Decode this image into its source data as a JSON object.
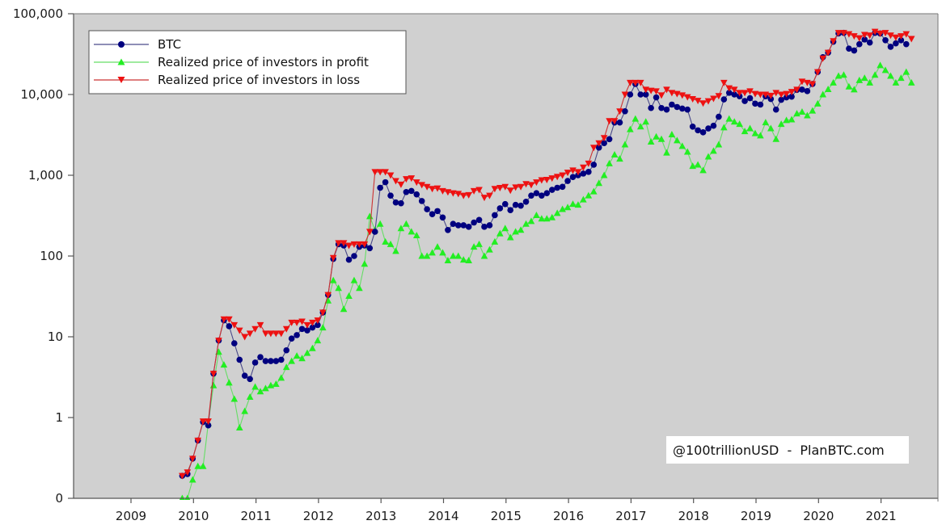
{
  "chart_data": {
    "type": "line",
    "title": "",
    "xlabel": "",
    "ylabel": "",
    "yscale": "log",
    "ylim": [
      0.1,
      100000
    ],
    "xlim": [
      2008.05,
      2022.0
    ],
    "grid": false,
    "background": "#d0d0d0",
    "y_ticks": [
      {
        "value": 100000,
        "label": "100,000"
      },
      {
        "value": 10000,
        "label": "10,000"
      },
      {
        "value": 1000,
        "label": "1,000"
      },
      {
        "value": 100,
        "label": "100"
      },
      {
        "value": 10,
        "label": "10"
      },
      {
        "value": 1,
        "label": "1"
      },
      {
        "value": 0.1,
        "label": "0"
      }
    ],
    "x_ticks": [
      {
        "value": 2009,
        "label": "2009"
      },
      {
        "value": 2010,
        "label": "2010"
      },
      {
        "value": 2011,
        "label": "2011"
      },
      {
        "value": 2012,
        "label": "2012"
      },
      {
        "value": 2013,
        "label": "2013"
      },
      {
        "value": 2014,
        "label": "2014"
      },
      {
        "value": 2015,
        "label": "2015"
      },
      {
        "value": 2016,
        "label": "2016"
      },
      {
        "value": 2017,
        "label": "2017"
      },
      {
        "value": 2018,
        "label": "2018"
      },
      {
        "value": 2019,
        "label": "2019"
      },
      {
        "value": 2020,
        "label": "2020"
      },
      {
        "value": 2021,
        "label": "2021"
      }
    ],
    "legend": {
      "position": "top-left",
      "entries": [
        {
          "name": "BTC",
          "color": "#00007f",
          "marker": "circle",
          "line_color": "#4a4a8a"
        },
        {
          "name": "Realized price of investors in profit",
          "color": "#22ee22",
          "marker": "triangle-up",
          "line_color": "#66dd66"
        },
        {
          "name": "Realized price of investors in loss",
          "color": "#ee1111",
          "marker": "triangle-down",
          "line_color": "#cc3333"
        }
      ]
    },
    "annotation": "@100trillionUSD  -  PlanBTC.com",
    "x_start": 2008.82,
    "x_step_months": 1,
    "series": [
      {
        "name": "BTC",
        "values": [
          0.19,
          0.2,
          0.31,
          0.52,
          0.88,
          0.8,
          3.5,
          9,
          16,
          13.5,
          8.3,
          5.2,
          3.3,
          3,
          4.8,
          5.6,
          5,
          5,
          5,
          5.2,
          6.8,
          9.5,
          10.5,
          12.5,
          12,
          13,
          14,
          20,
          33,
          92,
          140,
          135,
          90,
          100,
          130,
          135,
          125,
          200,
          700,
          820,
          560,
          460,
          450,
          620,
          640,
          580,
          480,
          380,
          330,
          360,
          300,
          210,
          250,
          240,
          240,
          230,
          260,
          280,
          230,
          240,
          320,
          390,
          440,
          370,
          430,
          420,
          470,
          560,
          600,
          560,
          600,
          660,
          700,
          720,
          850,
          950,
          1000,
          1050,
          1100,
          1350,
          2200,
          2500,
          2800,
          4500,
          4500,
          6200,
          10000,
          13500,
          10000,
          10000,
          6800,
          9200,
          6800,
          6500,
          7500,
          7000,
          6700,
          6500,
          4000,
          3600,
          3400,
          3800,
          4100,
          5300,
          8700,
          10500,
          10000,
          9500,
          8300,
          9000,
          7700,
          7500,
          9500,
          8800,
          6500,
          8600,
          9200,
          9400,
          11400,
          11500,
          11000,
          13500,
          19000,
          29000,
          33000,
          45000,
          57000,
          58000,
          37000,
          35000,
          42000,
          48000,
          44000,
          58000,
          57000,
          47000,
          39000,
          43000,
          47000,
          42000
        ]
      },
      {
        "name": "Realized price of investors in profit",
        "values": [
          0.1,
          0.1,
          0.17,
          0.25,
          0.25,
          0.85,
          2.5,
          6.5,
          4.5,
          2.7,
          1.7,
          0.75,
          1.2,
          1.8,
          2.4,
          2.1,
          2.3,
          2.5,
          2.6,
          3.1,
          4.2,
          5,
          5.8,
          5.4,
          6.3,
          7.2,
          9,
          13,
          28,
          50,
          40,
          22,
          32,
          50,
          40,
          80,
          310,
          210,
          250,
          150,
          140,
          115,
          220,
          250,
          200,
          180,
          100,
          100,
          110,
          130,
          110,
          88,
          100,
          100,
          90,
          88,
          130,
          140,
          100,
          120,
          150,
          190,
          220,
          170,
          200,
          210,
          250,
          270,
          320,
          290,
          290,
          300,
          340,
          380,
          400,
          440,
          430,
          500,
          560,
          630,
          800,
          1000,
          1400,
          1800,
          1600,
          2400,
          3700,
          5000,
          4000,
          4600,
          2600,
          3000,
          2800,
          1900,
          3200,
          2700,
          2300,
          1950,
          1300,
          1350,
          1150,
          1700,
          2000,
          2400,
          3900,
          5000,
          4600,
          4300,
          3500,
          3800,
          3300,
          3100,
          4500,
          3800,
          2800,
          4300,
          4800,
          4900,
          5800,
          6100,
          5500,
          6300,
          7700,
          10000,
          11600,
          14000,
          17000,
          17500,
          12500,
          11500,
          15000,
          16000,
          14000,
          17500,
          23000,
          20000,
          17000,
          14000,
          16000,
          19000,
          14000
        ]
      },
      {
        "name": "Realized price of investors in loss",
        "values": [
          0.19,
          0.21,
          0.31,
          0.52,
          0.9,
          0.9,
          3.5,
          9,
          16.5,
          16.5,
          14,
          12,
          10,
          11,
          12.5,
          14,
          11,
          11,
          11,
          11,
          12.5,
          15,
          15,
          15.5,
          14,
          15,
          16,
          20,
          33,
          95,
          145,
          145,
          135,
          140,
          140,
          140,
          200,
          1100,
          1100,
          1100,
          1000,
          850,
          770,
          900,
          920,
          820,
          760,
          720,
          680,
          690,
          640,
          620,
          600,
          590,
          560,
          570,
          640,
          660,
          530,
          560,
          680,
          700,
          720,
          650,
          710,
          720,
          780,
          760,
          820,
          870,
          880,
          920,
          960,
          1000,
          1080,
          1150,
          1100,
          1250,
          1400,
          2200,
          2500,
          2900,
          4700,
          4700,
          6200,
          10000,
          14000,
          14000,
          14000,
          11500,
          11200,
          11000,
          9800,
          11500,
          10500,
          10200,
          9800,
          9300,
          8800,
          8400,
          7800,
          8300,
          8900,
          9600,
          14000,
          12000,
          11500,
          10500,
          10500,
          11000,
          10200,
          10000,
          10000,
          9700,
          10500,
          10000,
          10200,
          10800,
          11500,
          14500,
          14000,
          13500,
          19000,
          28000,
          33000,
          46000,
          58000,
          58000,
          56000,
          53000,
          50000,
          55000,
          54000,
          60000,
          57000,
          58000,
          54000,
          51000,
          53000,
          56000,
          49000
        ]
      }
    ]
  }
}
